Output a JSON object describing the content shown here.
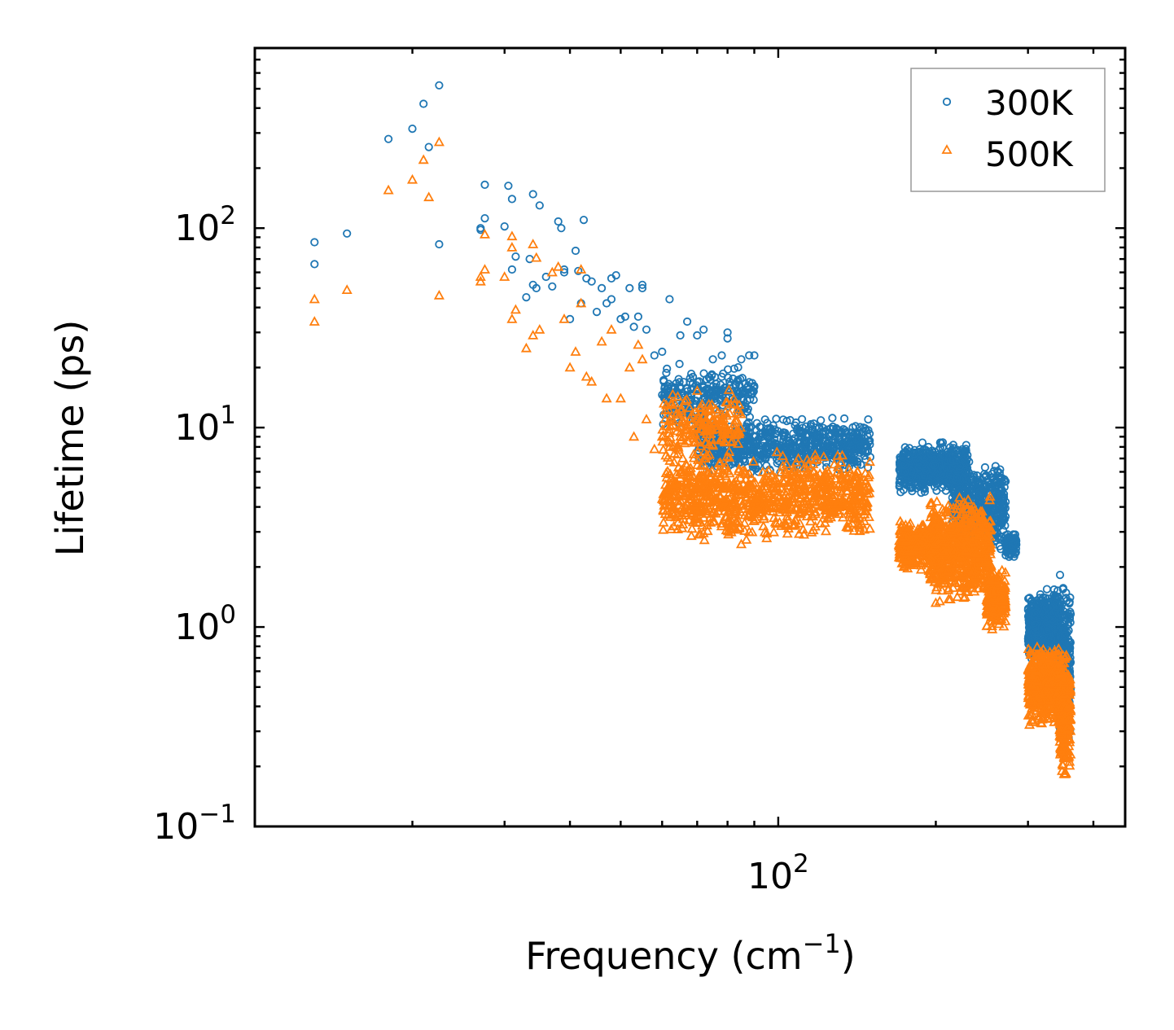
{
  "chart_data": {
    "type": "scatter",
    "title": "",
    "xlabel": "Frequency (cm",
    "xlabel_sup": "−1",
    "xlabel_end": ")",
    "ylabel": "Lifetime (ps)",
    "xscale": "log",
    "yscale": "log",
    "xlim": [
      10,
      460
    ],
    "ylim": [
      0.1,
      800
    ],
    "x_ticks": [
      {
        "value": 100,
        "base": "10",
        "exp": "2"
      }
    ],
    "y_ticks": [
      {
        "value": 0.1,
        "base": "10",
        "exp": "−1"
      },
      {
        "value": 1,
        "base": "10",
        "exp": "0"
      },
      {
        "value": 10,
        "base": "10",
        "exp": "1"
      },
      {
        "value": 100,
        "base": "10",
        "exp": "2"
      }
    ],
    "legend_position": "top-right",
    "series": [
      {
        "name": "300K",
        "marker": "circle",
        "color": "#1f77b4",
        "points": [
          [
            13.0,
            85
          ],
          [
            13.0,
            66
          ],
          [
            15.0,
            94
          ],
          [
            18.0,
            280
          ],
          [
            20.0,
            315
          ],
          [
            21.0,
            420
          ],
          [
            21.5,
            255
          ],
          [
            22.5,
            520
          ],
          [
            22.5,
            83
          ],
          [
            27.0,
            100
          ],
          [
            27.0,
            98
          ],
          [
            27.5,
            165
          ],
          [
            27.5,
            112
          ],
          [
            30.0,
            102
          ],
          [
            30.5,
            163
          ],
          [
            31.0,
            140
          ],
          [
            31.0,
            62
          ],
          [
            31.5,
            72
          ],
          [
            33.0,
            45
          ],
          [
            33.5,
            70
          ],
          [
            34.0,
            52
          ],
          [
            34.0,
            148
          ],
          [
            34.5,
            50
          ],
          [
            35.0,
            130
          ],
          [
            36.0,
            57
          ],
          [
            37.0,
            51
          ],
          [
            38.0,
            108
          ],
          [
            38.5,
            100
          ],
          [
            39.0,
            60
          ],
          [
            39.0,
            62
          ],
          [
            40.0,
            35
          ],
          [
            41.0,
            77
          ],
          [
            41.5,
            61
          ],
          [
            42.0,
            42
          ],
          [
            42.5,
            110
          ],
          [
            43.0,
            56
          ],
          [
            44.0,
            54
          ],
          [
            45.0,
            38
          ],
          [
            46.0,
            50
          ],
          [
            47.0,
            42
          ],
          [
            48.0,
            56
          ],
          [
            48.0,
            44
          ],
          [
            49.0,
            58
          ],
          [
            50.0,
            35
          ],
          [
            51.0,
            36
          ],
          [
            52.0,
            50
          ],
          [
            53.0,
            32
          ],
          [
            54.0,
            36
          ],
          [
            55.0,
            52
          ],
          [
            55.0,
            50
          ],
          [
            56.0,
            31
          ],
          [
            58.0,
            23
          ],
          [
            60.0,
            24
          ],
          [
            62.0,
            44
          ],
          [
            65.0,
            29
          ],
          [
            67.0,
            34
          ],
          [
            70.0,
            29
          ],
          [
            72.0,
            31
          ],
          [
            75.0,
            22
          ],
          [
            78.0,
            23
          ],
          [
            80.0,
            30
          ],
          [
            80.0,
            28
          ],
          [
            85.0,
            22
          ],
          [
            88.0,
            23
          ],
          [
            90.0,
            23
          ]
        ]
      },
      {
        "name": "500K",
        "marker": "triangle",
        "color": "#ff7f0e",
        "points": [
          [
            13.0,
            44
          ],
          [
            13.0,
            34
          ],
          [
            15.0,
            49
          ],
          [
            18.0,
            155
          ],
          [
            20.0,
            175
          ],
          [
            21.0,
            220
          ],
          [
            21.5,
            143
          ],
          [
            22.5,
            270
          ],
          [
            22.5,
            46
          ],
          [
            27.0,
            57
          ],
          [
            27.0,
            54
          ],
          [
            27.5,
            93
          ],
          [
            27.5,
            62
          ],
          [
            30.0,
            57
          ],
          [
            31.0,
            91
          ],
          [
            31.0,
            80
          ],
          [
            31.0,
            35
          ],
          [
            31.5,
            39
          ],
          [
            33.0,
            25
          ],
          [
            34.0,
            83
          ],
          [
            34.0,
            29
          ],
          [
            34.5,
            71
          ],
          [
            35.0,
            31
          ],
          [
            37.0,
            60
          ],
          [
            38.0,
            64
          ],
          [
            39.0,
            35
          ],
          [
            40.0,
            20
          ],
          [
            41.0,
            24
          ],
          [
            42.0,
            42
          ],
          [
            42.0,
            62
          ],
          [
            43.0,
            18
          ],
          [
            44.0,
            17
          ],
          [
            46.0,
            27
          ],
          [
            47.0,
            14
          ],
          [
            48.0,
            31
          ],
          [
            50.0,
            14
          ],
          [
            52.0,
            20
          ],
          [
            53.0,
            9
          ],
          [
            54.0,
            26
          ],
          [
            55.0,
            22
          ],
          [
            56.0,
            11
          ],
          [
            58.0,
            7.8
          ],
          [
            60.0,
            9
          ],
          [
            62.0,
            8
          ],
          [
            65.0,
            6
          ],
          [
            68.0,
            4.6
          ],
          [
            70.0,
            4.2
          ],
          [
            72.0,
            5.8
          ],
          [
            75.0,
            3.8
          ],
          [
            78.0,
            3.3
          ],
          [
            80.0,
            3.4
          ],
          [
            82.0,
            3.2
          ],
          [
            85.0,
            2.6
          ],
          [
            88.0,
            3
          ],
          [
            90.0,
            3.4
          ]
        ]
      }
    ],
    "clusters": [
      {
        "series": 0,
        "x": [
          70,
          150
        ],
        "y": [
          5.5,
          12
        ],
        "n": 700,
        "peak": 110
      },
      {
        "series": 0,
        "x": [
          60,
          90
        ],
        "y": [
          9,
          22
        ],
        "n": 250,
        "peak": 75
      },
      {
        "series": 0,
        "x": [
          170,
          230
        ],
        "y": [
          4.5,
          8.8
        ],
        "n": 700,
        "peak": 205
      },
      {
        "series": 0,
        "x": [
          215,
          272
        ],
        "y": [
          2.2,
          7.5
        ],
        "n": 500,
        "peak": 230
      },
      {
        "series": 0,
        "x": [
          272,
          285
        ],
        "y": [
          2.1,
          3.2
        ],
        "n": 80,
        "peak": 276
      },
      {
        "series": 0,
        "x": [
          300,
          345
        ],
        "y": [
          0.6,
          1.7
        ],
        "n": 500,
        "peak": 335
      },
      {
        "series": 0,
        "x": [
          345,
          362
        ],
        "y": [
          0.2,
          2.1
        ],
        "n": 250,
        "peak": 350
      },
      {
        "series": 1,
        "x": [
          60,
          150
        ],
        "y": [
          2.5,
          8
        ],
        "n": 900,
        "peak": 85
      },
      {
        "series": 1,
        "x": [
          60,
          85
        ],
        "y": [
          6,
          17
        ],
        "n": 200,
        "peak": 70
      },
      {
        "series": 1,
        "x": [
          170,
          200
        ],
        "y": [
          1.8,
          3.6
        ],
        "n": 300,
        "peak": 190
      },
      {
        "series": 1,
        "x": [
          195,
          255
        ],
        "y": [
          1.2,
          5
        ],
        "n": 700,
        "peak": 210
      },
      {
        "series": 1,
        "x": [
          250,
          272
        ],
        "y": [
          0.9,
          2.2
        ],
        "n": 200,
        "peak": 260
      },
      {
        "series": 1,
        "x": [
          300,
          345
        ],
        "y": [
          0.3,
          0.9
        ],
        "n": 500,
        "peak": 340
      },
      {
        "series": 1,
        "x": [
          345,
          362
        ],
        "y": [
          0.15,
          0.9
        ],
        "n": 250,
        "peak": 350
      }
    ]
  }
}
